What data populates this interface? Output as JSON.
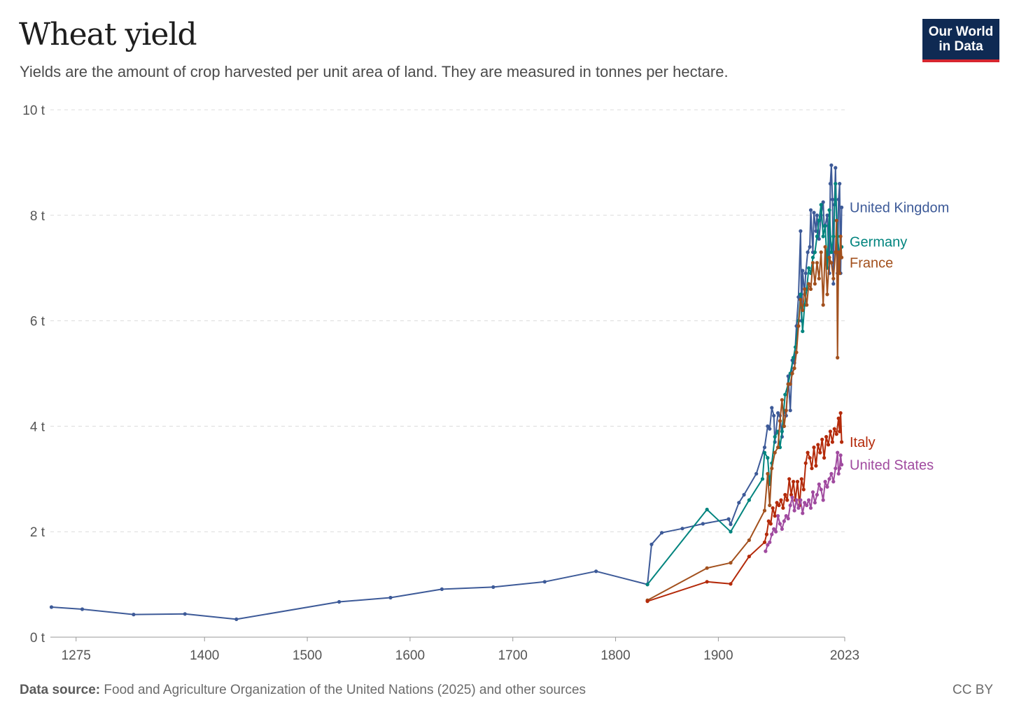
{
  "header": {
    "title": "Wheat yield",
    "subtitle": "Yields are the amount of crop harvested per unit area of land. They are measured in tonnes per hectare."
  },
  "logo": {
    "line1": "Our World",
    "line2": "in Data"
  },
  "footer": {
    "source_label": "Data source:",
    "source_text": "Food and Agriculture Organization of the United Nations (2025) and other sources",
    "license": "CC BY"
  },
  "colors": {
    "United Kingdom": "#3d5a98",
    "Germany": "#00847e",
    "France": "#a2501d",
    "Italy": "#b42a0a",
    "United States": "#a04a9f",
    "grid": "#dcdcdc",
    "axis_text": "#555555"
  },
  "chart_data": {
    "type": "line",
    "title": "Wheat yield",
    "ylabel": "",
    "xlabel": "",
    "xlim": [
      1250,
      2023
    ],
    "ylim": [
      0,
      10
    ],
    "x_ticks": [
      {
        "value": 1275,
        "label": "1275"
      },
      {
        "value": 1400,
        "label": "1400"
      },
      {
        "value": 1500,
        "label": "1500"
      },
      {
        "value": 1600,
        "label": "1600"
      },
      {
        "value": 1700,
        "label": "1700"
      },
      {
        "value": 1800,
        "label": "1800"
      },
      {
        "value": 1900,
        "label": "1900"
      },
      {
        "value": 2023,
        "label": "2023"
      }
    ],
    "y_ticks": [
      {
        "value": 0,
        "label": "0 t"
      },
      {
        "value": 2,
        "label": "2 t"
      },
      {
        "value": 4,
        "label": "4 t"
      },
      {
        "value": 6,
        "label": "6 t"
      },
      {
        "value": 8,
        "label": "8 t"
      },
      {
        "value": 10,
        "label": "10 t"
      }
    ],
    "grid": true,
    "legend": "line-end labels",
    "series": [
      {
        "name": "United Kingdom",
        "label_y": 8.15,
        "points": [
          [
            1251,
            0.57
          ],
          [
            1281,
            0.53
          ],
          [
            1331,
            0.43
          ],
          [
            1381,
            0.44
          ],
          [
            1431,
            0.34
          ],
          [
            1531,
            0.67
          ],
          [
            1581,
            0.75
          ],
          [
            1631,
            0.91
          ],
          [
            1681,
            0.95
          ],
          [
            1731,
            1.05
          ],
          [
            1781,
            1.25
          ],
          [
            1831,
            1.0
          ],
          [
            1835,
            1.76
          ],
          [
            1845,
            1.98
          ],
          [
            1865,
            2.06
          ],
          [
            1885,
            2.15
          ],
          [
            1910,
            2.24
          ],
          [
            1912,
            2.14
          ],
          [
            1920,
            2.55
          ],
          [
            1925,
            2.7
          ],
          [
            1937,
            3.1
          ],
          [
            1945,
            3.6
          ],
          [
            1948,
            4.0
          ],
          [
            1950,
            3.95
          ],
          [
            1952,
            4.35
          ],
          [
            1954,
            4.2
          ],
          [
            1955,
            3.7
          ],
          [
            1958,
            4.25
          ],
          [
            1960,
            4.2
          ],
          [
            1962,
            3.8
          ],
          [
            1964,
            4.3
          ],
          [
            1966,
            4.2
          ],
          [
            1968,
            4.95
          ],
          [
            1970,
            4.3
          ],
          [
            1972,
            5.25
          ],
          [
            1974,
            5.2
          ],
          [
            1976,
            5.9
          ],
          [
            1978,
            6.45
          ],
          [
            1980,
            7.7
          ],
          [
            1981,
            6.0
          ],
          [
            1982,
            6.95
          ],
          [
            1984,
            6.5
          ],
          [
            1985,
            6.9
          ],
          [
            1987,
            7.3
          ],
          [
            1989,
            7.4
          ],
          [
            1990,
            8.1
          ],
          [
            1992,
            7.3
          ],
          [
            1993,
            8.05
          ],
          [
            1995,
            7.7
          ],
          [
            1996,
            8.0
          ],
          [
            1998,
            7.55
          ],
          [
            2000,
            8.0
          ],
          [
            2002,
            8.25
          ],
          [
            2003,
            7.8
          ],
          [
            2004,
            7.8
          ],
          [
            2006,
            8.0
          ],
          [
            2008,
            6.9
          ],
          [
            2009,
            8.6
          ],
          [
            2010,
            8.95
          ],
          [
            2011,
            8.3
          ],
          [
            2012,
            6.7
          ],
          [
            2013,
            8.2
          ],
          [
            2014,
            8.9
          ],
          [
            2015,
            7.9
          ],
          [
            2016,
            6.9
          ],
          [
            2017,
            8.3
          ],
          [
            2018,
            8.6
          ],
          [
            2019,
            6.9
          ],
          [
            2020,
            8.15
          ]
        ]
      },
      {
        "name": "Germany",
        "label_y": 7.5,
        "points": [
          [
            1831,
            1.0
          ],
          [
            1889,
            2.42
          ],
          [
            1912,
            2.0
          ],
          [
            1930,
            2.6
          ],
          [
            1943,
            3.0
          ],
          [
            1945,
            3.5
          ],
          [
            1948,
            3.4
          ],
          [
            1950,
            2.9
          ],
          [
            1952,
            3.3
          ],
          [
            1955,
            3.8
          ],
          [
            1958,
            3.9
          ],
          [
            1960,
            3.6
          ],
          [
            1962,
            3.9
          ],
          [
            1965,
            4.6
          ],
          [
            1968,
            4.8
          ],
          [
            1970,
            5.0
          ],
          [
            1973,
            5.3
          ],
          [
            1975,
            5.5
          ],
          [
            1978,
            6.0
          ],
          [
            1980,
            6.5
          ],
          [
            1982,
            5.8
          ],
          [
            1984,
            6.3
          ],
          [
            1986,
            6.6
          ],
          [
            1988,
            7.0
          ],
          [
            1990,
            6.9
          ],
          [
            1992,
            7.2
          ],
          [
            1994,
            7.3
          ],
          [
            1996,
            7.6
          ],
          [
            1998,
            7.9
          ],
          [
            2000,
            8.2
          ],
          [
            2002,
            7.6
          ],
          [
            2004,
            7.8
          ],
          [
            2006,
            7.0
          ],
          [
            2008,
            8.1
          ],
          [
            2010,
            7.3
          ],
          [
            2012,
            7.6
          ],
          [
            2014,
            8.6
          ],
          [
            2016,
            7.6
          ],
          [
            2018,
            7.2
          ],
          [
            2020,
            7.4
          ]
        ]
      },
      {
        "name": "France",
        "label_y": 7.1,
        "points": [
          [
            1831,
            0.7
          ],
          [
            1889,
            1.31
          ],
          [
            1912,
            1.41
          ],
          [
            1930,
            1.84
          ],
          [
            1945,
            2.4
          ],
          [
            1948,
            3.1
          ],
          [
            1950,
            2.5
          ],
          [
            1952,
            3.2
          ],
          [
            1955,
            3.5
          ],
          [
            1958,
            3.6
          ],
          [
            1960,
            4.1
          ],
          [
            1962,
            4.5
          ],
          [
            1964,
            4.0
          ],
          [
            1966,
            4.3
          ],
          [
            1968,
            4.8
          ],
          [
            1970,
            4.8
          ],
          [
            1972,
            5.0
          ],
          [
            1974,
            5.1
          ],
          [
            1976,
            5.4
          ],
          [
            1978,
            5.9
          ],
          [
            1980,
            6.4
          ],
          [
            1982,
            6.2
          ],
          [
            1984,
            6.6
          ],
          [
            1986,
            6.3
          ],
          [
            1988,
            6.7
          ],
          [
            1990,
            6.6
          ],
          [
            1992,
            7.1
          ],
          [
            1994,
            6.7
          ],
          [
            1996,
            7.1
          ],
          [
            1998,
            6.8
          ],
          [
            2000,
            7.3
          ],
          [
            2002,
            6.3
          ],
          [
            2004,
            7.4
          ],
          [
            2006,
            6.5
          ],
          [
            2008,
            7.2
          ],
          [
            2010,
            7.1
          ],
          [
            2012,
            6.8
          ],
          [
            2014,
            7.3
          ],
          [
            2015,
            7.9
          ],
          [
            2016,
            5.3
          ],
          [
            2017,
            7.3
          ],
          [
            2018,
            6.9
          ],
          [
            2019,
            7.6
          ],
          [
            2020,
            7.2
          ]
        ]
      },
      {
        "name": "Italy",
        "label_y": 3.7,
        "points": [
          [
            1831,
            0.68
          ],
          [
            1889,
            1.05
          ],
          [
            1912,
            1.01
          ],
          [
            1930,
            1.53
          ],
          [
            1945,
            1.8
          ],
          [
            1947,
            1.95
          ],
          [
            1949,
            2.2
          ],
          [
            1951,
            2.15
          ],
          [
            1953,
            2.45
          ],
          [
            1955,
            2.3
          ],
          [
            1957,
            2.55
          ],
          [
            1959,
            2.5
          ],
          [
            1961,
            2.6
          ],
          [
            1963,
            2.45
          ],
          [
            1965,
            2.7
          ],
          [
            1967,
            2.6
          ],
          [
            1969,
            3.0
          ],
          [
            1971,
            2.7
          ],
          [
            1973,
            2.95
          ],
          [
            1975,
            2.6
          ],
          [
            1977,
            2.95
          ],
          [
            1979,
            2.5
          ],
          [
            1981,
            3.0
          ],
          [
            1983,
            2.8
          ],
          [
            1985,
            3.3
          ],
          [
            1987,
            3.5
          ],
          [
            1989,
            3.4
          ],
          [
            1991,
            3.2
          ],
          [
            1993,
            3.6
          ],
          [
            1995,
            3.25
          ],
          [
            1997,
            3.65
          ],
          [
            1999,
            3.5
          ],
          [
            2001,
            3.75
          ],
          [
            2003,
            3.4
          ],
          [
            2005,
            3.8
          ],
          [
            2007,
            3.65
          ],
          [
            2009,
            3.9
          ],
          [
            2011,
            3.7
          ],
          [
            2013,
            3.95
          ],
          [
            2015,
            3.85
          ],
          [
            2017,
            4.15
          ],
          [
            2018,
            3.9
          ],
          [
            2019,
            4.25
          ],
          [
            2020,
            3.7
          ]
        ]
      },
      {
        "name": "United States",
        "label_y": 3.27,
        "points": [
          [
            1946,
            1.63
          ],
          [
            1948,
            1.75
          ],
          [
            1950,
            1.8
          ],
          [
            1952,
            1.95
          ],
          [
            1954,
            2.05
          ],
          [
            1956,
            2.0
          ],
          [
            1958,
            2.3
          ],
          [
            1960,
            2.15
          ],
          [
            1962,
            2.05
          ],
          [
            1964,
            2.2
          ],
          [
            1966,
            2.3
          ],
          [
            1968,
            2.25
          ],
          [
            1970,
            2.5
          ],
          [
            1972,
            2.65
          ],
          [
            1974,
            2.4
          ],
          [
            1976,
            2.6
          ],
          [
            1978,
            2.45
          ],
          [
            1980,
            2.6
          ],
          [
            1982,
            2.35
          ],
          [
            1984,
            2.55
          ],
          [
            1986,
            2.5
          ],
          [
            1988,
            2.6
          ],
          [
            1990,
            2.45
          ],
          [
            1992,
            2.75
          ],
          [
            1994,
            2.55
          ],
          [
            1996,
            2.7
          ],
          [
            1998,
            2.9
          ],
          [
            2000,
            2.8
          ],
          [
            2002,
            2.6
          ],
          [
            2004,
            2.95
          ],
          [
            2006,
            2.85
          ],
          [
            2008,
            3.0
          ],
          [
            2010,
            3.1
          ],
          [
            2012,
            2.95
          ],
          [
            2014,
            3.2
          ],
          [
            2016,
            3.5
          ],
          [
            2017,
            3.1
          ],
          [
            2018,
            3.2
          ],
          [
            2019,
            3.45
          ],
          [
            2020,
            3.27
          ]
        ]
      }
    ]
  }
}
